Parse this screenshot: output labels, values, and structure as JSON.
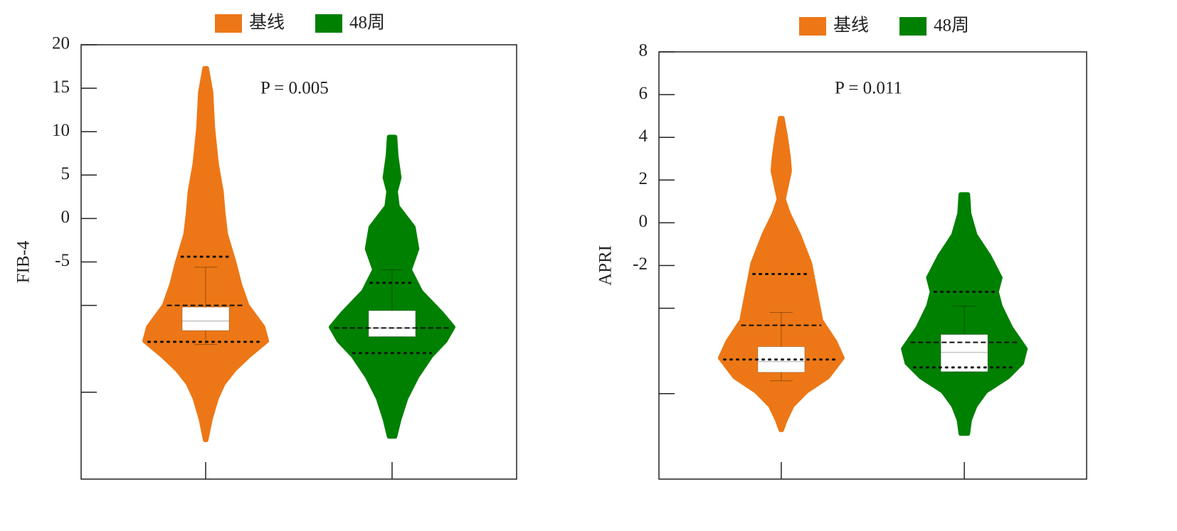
{
  "chart_data": [
    {
      "type": "violin",
      "y_label": "FIB-4",
      "annotation": "P = 0.005",
      "categories": [
        null,
        null
      ],
      "ylim": [
        -30,
        20
      ],
      "yticks": [
        20,
        15,
        10,
        5,
        0,
        -5,
        {
          "value": -10,
          "label": null
        },
        {
          "value": -20,
          "label": null
        }
      ],
      "series": [
        {
          "name": "基线",
          "color": "#ED7716",
          "density": {
            "y": [
              17.3,
              14.5,
              10.4,
              6.3,
              3.1,
              0.6,
              -1.8,
              -5.1,
              -7.6,
              -10.0,
              -12.5,
              -14.1,
              -15.8,
              -17.4,
              -19.0,
              -20.7,
              -23.1,
              -25.5
            ],
            "width": [
              0.02,
              0.09,
              0.12,
              0.18,
              0.26,
              0.29,
              0.33,
              0.47,
              0.56,
              0.68,
              0.94,
              1.0,
              0.71,
              0.47,
              0.29,
              0.18,
              0.08,
              0.01
            ]
          },
          "quartiles": [
            -14.2,
            -10.0,
            -4.4
          ],
          "box": [
            -12.9,
            -11.8,
            -10.2
          ],
          "whiskers": [
            -14.5,
            -5.6
          ]
        },
        {
          "name": "48周",
          "color": "#008000",
          "density": {
            "y": [
              9.4,
              7.2,
              4.7,
              3.1,
              1.4,
              -1.0,
              -3.5,
              -5.9,
              -8.4,
              -10.9,
              -12.5,
              -14.1,
              -15.8,
              -18.2,
              -20.7,
              -23.1,
              -25.1
            ],
            "width": [
              0.05,
              0.07,
              0.12,
              0.06,
              0.09,
              0.35,
              0.41,
              0.29,
              0.47,
              0.81,
              1.0,
              0.87,
              0.64,
              0.41,
              0.23,
              0.12,
              0.05
            ]
          },
          "quartiles": [
            -15.5,
            -12.6,
            -7.4
          ],
          "box": [
            -13.6,
            -12.6,
            -10.6
          ],
          "whiskers": [
            -13.6,
            -5.9
          ]
        }
      ]
    },
    {
      "type": "violin",
      "y_label": "APRI",
      "annotation": "P = 0.011",
      "categories": [
        null,
        null
      ],
      "ylim": [
        -12,
        8
      ],
      "yticks": [
        8,
        6,
        4,
        2,
        0,
        -2,
        {
          "value": -4,
          "label": null
        },
        {
          "value": -8,
          "label": null
        }
      ],
      "series": [
        {
          "name": "基线",
          "color": "#ED7716",
          "density": {
            "y": [
              4.9,
              4.1,
              3.1,
              2.43,
              1.77,
              1.1,
              0.43,
              -0.57,
              -1.9,
              -3.23,
              -4.57,
              -5.57,
              -6.33,
              -7.23,
              -7.9,
              -8.57,
              -9.23,
              -9.7
            ],
            "width": [
              0.02,
              0.07,
              0.12,
              0.14,
              0.09,
              0.04,
              0.12,
              0.29,
              0.47,
              0.56,
              0.65,
              0.88,
              1.0,
              0.76,
              0.41,
              0.18,
              0.07,
              0.01
            ]
          },
          "quartiles": [
            -6.4,
            -4.8,
            -2.4
          ],
          "box": [
            -7.0,
            -6.5,
            -5.8
          ],
          "whiskers": [
            -7.4,
            -4.2
          ]
        },
        {
          "name": "48周",
          "color": "#008000",
          "density": {
            "y": [
              1.33,
              0.43,
              -0.57,
              -1.57,
              -2.57,
              -3.23,
              -3.9,
              -4.9,
              -5.9,
              -6.57,
              -7.23,
              -7.9,
              -8.57,
              -9.23,
              -9.87
            ],
            "width": [
              0.06,
              0.08,
              0.18,
              0.41,
              0.59,
              0.53,
              0.59,
              0.76,
              1.0,
              0.94,
              0.71,
              0.35,
              0.18,
              0.09,
              0.06
            ]
          },
          "quartiles": [
            -6.77,
            -5.6,
            -3.23
          ],
          "box": [
            -6.97,
            -6.07,
            -5.23
          ],
          "whiskers": [
            -6.97,
            -3.9
          ]
        }
      ]
    }
  ]
}
